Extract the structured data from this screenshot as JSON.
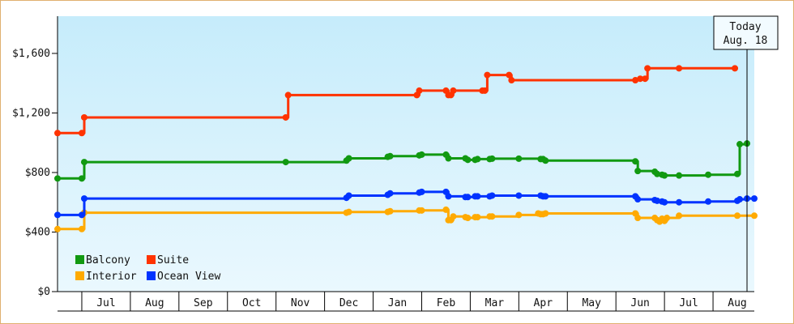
{
  "chart_data": {
    "type": "line",
    "title": "",
    "xlabel": "",
    "ylabel": "",
    "ylim": [
      0,
      1850
    ],
    "yticks": [
      {
        "value": 0,
        "label": "$0"
      },
      {
        "value": 400,
        "label": "$400"
      },
      {
        "value": 800,
        "label": "$800"
      },
      {
        "value": 1200,
        "label": "$1,200"
      },
      {
        "value": 1600,
        "label": "$1,600"
      }
    ],
    "x_range": [
      0.0,
      14.35
    ],
    "x_months": [
      "Jul",
      "Aug",
      "Sep",
      "Oct",
      "Nov",
      "Dec",
      "Jan",
      "Feb",
      "Mar",
      "Apr",
      "May",
      "Jun",
      "Jul",
      "Aug"
    ],
    "today": {
      "line1": "Today",
      "line2": "Aug. 18",
      "x": 14.2
    },
    "grid": false,
    "legend_position": "bottom-left",
    "series": [
      {
        "name": "Balcony",
        "color": "#119911",
        "points": [
          [
            0.0,
            760
          ],
          [
            0.5,
            760
          ],
          [
            0.55,
            870
          ],
          [
            4.7,
            870
          ],
          [
            5.95,
            880
          ],
          [
            6.0,
            895
          ],
          [
            6.8,
            905
          ],
          [
            6.85,
            910
          ],
          [
            7.45,
            915
          ],
          [
            7.5,
            920
          ],
          [
            8.0,
            920
          ],
          [
            8.05,
            895
          ],
          [
            8.4,
            895
          ],
          [
            8.45,
            885
          ],
          [
            8.6,
            885
          ],
          [
            8.65,
            890
          ],
          [
            8.9,
            890
          ],
          [
            8.95,
            893
          ],
          [
            9.5,
            893
          ],
          [
            9.95,
            890
          ],
          [
            10.0,
            890
          ],
          [
            10.05,
            880
          ],
          [
            11.9,
            875
          ],
          [
            11.95,
            810
          ],
          [
            12.3,
            805
          ],
          [
            12.35,
            790
          ],
          [
            12.45,
            785
          ],
          [
            12.5,
            780
          ],
          [
            12.8,
            780
          ],
          [
            13.4,
            785
          ],
          [
            14.0,
            790
          ],
          [
            14.05,
            990
          ],
          [
            14.2,
            995
          ]
        ]
      },
      {
        "name": "Suite",
        "color": "#ff3300",
        "points": [
          [
            0.0,
            1065
          ],
          [
            0.5,
            1065
          ],
          [
            0.55,
            1170
          ],
          [
            4.7,
            1170
          ],
          [
            4.75,
            1320
          ],
          [
            7.4,
            1320
          ],
          [
            7.45,
            1350
          ],
          [
            8.0,
            1350
          ],
          [
            8.05,
            1320
          ],
          [
            8.1,
            1320
          ],
          [
            8.15,
            1350
          ],
          [
            8.75,
            1350
          ],
          [
            8.8,
            1350
          ],
          [
            8.85,
            1455
          ],
          [
            9.3,
            1455
          ],
          [
            9.35,
            1420
          ],
          [
            11.9,
            1420
          ],
          [
            12.0,
            1430
          ],
          [
            12.1,
            1430
          ],
          [
            12.15,
            1500
          ],
          [
            12.8,
            1500
          ],
          [
            13.95,
            1500
          ]
        ]
      },
      {
        "name": "Interior",
        "color": "#ffaa00",
        "points": [
          [
            0.0,
            420
          ],
          [
            0.5,
            420
          ],
          [
            0.55,
            530
          ],
          [
            5.95,
            530
          ],
          [
            6.0,
            535
          ],
          [
            6.8,
            535
          ],
          [
            6.85,
            540
          ],
          [
            7.45,
            545
          ],
          [
            7.5,
            545
          ],
          [
            8.0,
            550
          ],
          [
            8.05,
            480
          ],
          [
            8.1,
            480
          ],
          [
            8.15,
            505
          ],
          [
            8.4,
            500
          ],
          [
            8.45,
            495
          ],
          [
            8.6,
            500
          ],
          [
            8.65,
            500
          ],
          [
            8.9,
            505
          ],
          [
            8.95,
            505
          ],
          [
            9.5,
            515
          ],
          [
            9.9,
            525
          ],
          [
            9.95,
            520
          ],
          [
            10.0,
            520
          ],
          [
            10.05,
            525
          ],
          [
            11.9,
            525
          ],
          [
            11.95,
            495
          ],
          [
            12.3,
            495
          ],
          [
            12.35,
            480
          ],
          [
            12.4,
            470
          ],
          [
            12.45,
            490
          ],
          [
            12.5,
            475
          ],
          [
            12.55,
            495
          ],
          [
            12.8,
            510
          ],
          [
            14.0,
            510
          ],
          [
            14.35,
            510
          ]
        ]
      },
      {
        "name": "Ocean View",
        "color": "#0033ff",
        "points": [
          [
            0.0,
            515
          ],
          [
            0.5,
            515
          ],
          [
            0.55,
            625
          ],
          [
            5.95,
            630
          ],
          [
            6.0,
            645
          ],
          [
            6.8,
            650
          ],
          [
            6.85,
            660
          ],
          [
            7.45,
            665
          ],
          [
            7.5,
            670
          ],
          [
            8.0,
            670
          ],
          [
            8.05,
            640
          ],
          [
            8.4,
            635
          ],
          [
            8.45,
            635
          ],
          [
            8.6,
            640
          ],
          [
            8.65,
            640
          ],
          [
            8.9,
            640
          ],
          [
            8.95,
            645
          ],
          [
            9.5,
            645
          ],
          [
            9.95,
            645
          ],
          [
            10.0,
            640
          ],
          [
            10.05,
            640
          ],
          [
            11.9,
            640
          ],
          [
            11.95,
            620
          ],
          [
            12.3,
            615
          ],
          [
            12.35,
            610
          ],
          [
            12.45,
            605
          ],
          [
            12.5,
            600
          ],
          [
            12.8,
            600
          ],
          [
            13.4,
            605
          ],
          [
            14.0,
            610
          ],
          [
            14.05,
            620
          ],
          [
            14.2,
            625
          ],
          [
            14.35,
            625
          ]
        ]
      }
    ]
  }
}
